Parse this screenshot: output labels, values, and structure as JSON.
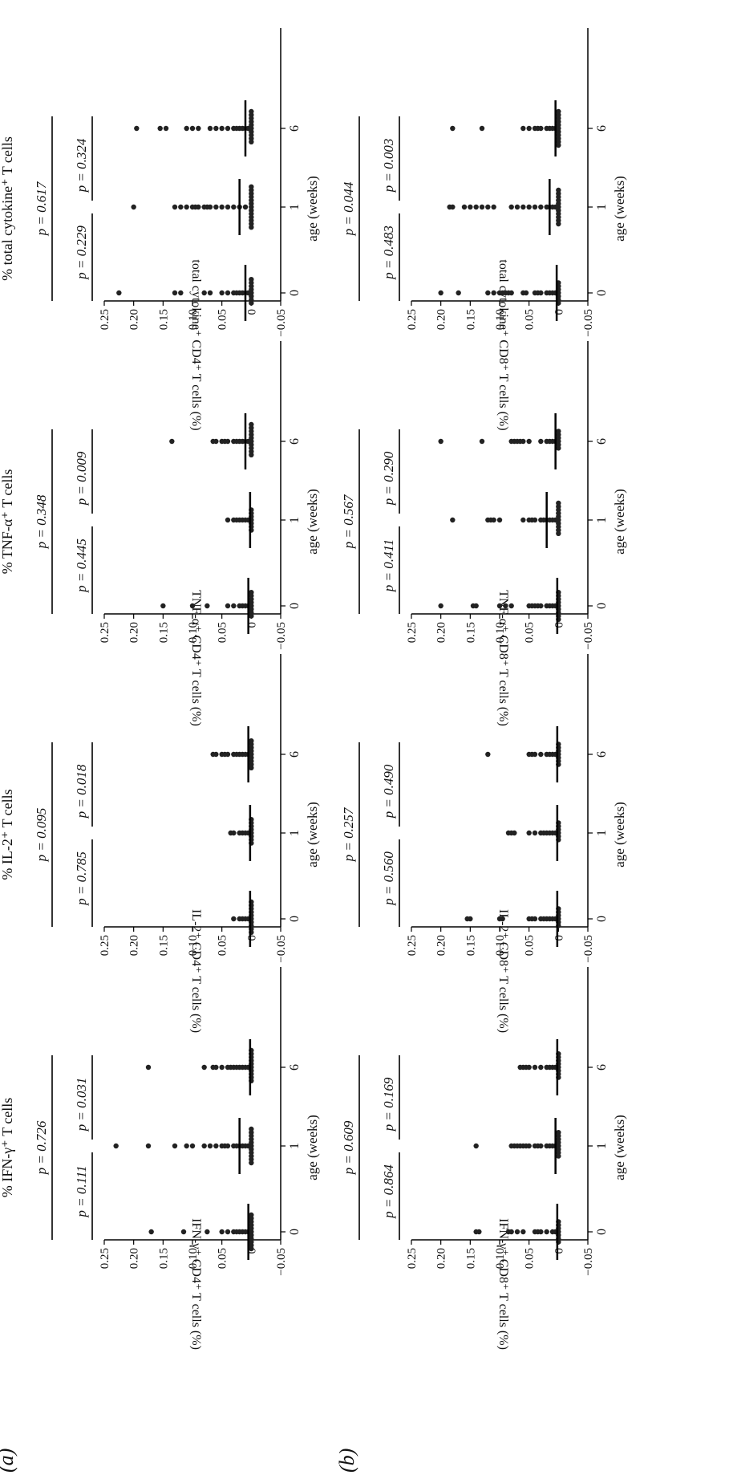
{
  "panel_labels": [
    "(a)",
    "(b)"
  ],
  "chart_data": [
    {
      "type": "scatter",
      "panel": "(a)",
      "title": "% IFN-γ⁺ T cells",
      "ylabel": "IFN-γ⁺ CD4⁺ T cells (%)",
      "xlabel": "age (weeks)",
      "categories": [
        "0",
        "1",
        "6"
      ],
      "ylim": [
        -0.05,
        0.25
      ],
      "yticks": [
        "−0.05",
        "0",
        "0.05",
        "0.10",
        "0.15",
        "0.20",
        "0.25"
      ],
      "p_overall": "p = 0.726",
      "p_left": "p = 0.111",
      "p_right": "p = 0.031",
      "series": [
        {
          "x": "0",
          "values": [
            0.17,
            0.115,
            0.075,
            0.05,
            0.04,
            0.03,
            0.025,
            0.02,
            0.015,
            0.01,
            0.005,
            0,
            0,
            0,
            0,
            0,
            0,
            0,
            0,
            0,
            0,
            0
          ]
        },
        {
          "x": "1",
          "values": [
            0.23,
            0.175,
            0.13,
            0.11,
            0.1,
            0.08,
            0.07,
            0.06,
            0.05,
            0.045,
            0.04,
            0.03,
            0.025,
            0.02,
            0.015,
            0.01,
            0.005,
            0,
            0,
            0,
            0,
            0,
            0,
            0,
            0,
            0,
            0,
            0
          ]
        },
        {
          "x": "6",
          "values": [
            0.175,
            0.08,
            0.065,
            0.06,
            0.05,
            0.04,
            0.035,
            0.03,
            0.025,
            0.02,
            0.015,
            0.01,
            0.005,
            0,
            0,
            0,
            0,
            0,
            0,
            0,
            0,
            0,
            0
          ]
        }
      ],
      "medians": [
        0.005,
        0.02,
        0.002
      ]
    },
    {
      "type": "scatter",
      "panel": "(a)",
      "title": "% IL-2⁺ T cells",
      "ylabel": "IL-2⁺ CD4⁺ T cells (%)",
      "xlabel": "age (weeks)",
      "categories": [
        "0",
        "1",
        "6"
      ],
      "ylim": [
        -0.05,
        0.25
      ],
      "yticks": [
        "−0.05",
        "0",
        "0.05",
        "0.10",
        "0.15",
        "0.20",
        "0.25"
      ],
      "p_overall": "p = 0.095",
      "p_left": "p = 0.785",
      "p_right": "p = 0.018",
      "series": [
        {
          "x": "0",
          "values": [
            0.03,
            0.02,
            0.015,
            0.01,
            0.005,
            0,
            0,
            0,
            0,
            0,
            0,
            0,
            0,
            0,
            0
          ]
        },
        {
          "x": "1",
          "values": [
            0.035,
            0.03,
            0.02,
            0.015,
            0.01,
            0.005,
            0,
            0,
            0,
            0,
            0,
            0,
            0,
            0
          ]
        },
        {
          "x": "6",
          "values": [
            0.065,
            0.06,
            0.05,
            0.045,
            0.04,
            0.03,
            0.025,
            0.02,
            0.015,
            0.01,
            0.005,
            0,
            0,
            0,
            0,
            0,
            0,
            0,
            0,
            0
          ]
        }
      ],
      "medians": [
        0.002,
        0.002,
        0.005
      ]
    },
    {
      "type": "scatter",
      "panel": "(a)",
      "title": "% TNF-α⁺ T cells",
      "ylabel": "TNF-α⁺ CD4⁺ T cells (%)",
      "xlabel": "age (weeks)",
      "categories": [
        "0",
        "1",
        "6"
      ],
      "ylim": [
        -0.05,
        0.25
      ],
      "yticks": [
        "−0.05",
        "0",
        "0.05",
        "0.10",
        "0.15",
        "0.20",
        "0.25"
      ],
      "p_overall": "p = 0.348",
      "p_left": "p = 0.445",
      "p_right": "p = 0.009",
      "series": [
        {
          "x": "0",
          "values": [
            0.15,
            0.1,
            0.075,
            0.04,
            0.03,
            0.02,
            0.015,
            0.01,
            0.005,
            0,
            0,
            0,
            0,
            0,
            0,
            0,
            0
          ]
        },
        {
          "x": "1",
          "values": [
            0.04,
            0.03,
            0.025,
            0.02,
            0.015,
            0.01,
            0.005,
            0,
            0,
            0,
            0,
            0,
            0,
            0
          ]
        },
        {
          "x": "6",
          "values": [
            0.135,
            0.065,
            0.06,
            0.05,
            0.045,
            0.04,
            0.03,
            0.025,
            0.02,
            0.015,
            0.01,
            0.005,
            0,
            0,
            0,
            0,
            0,
            0,
            0,
            0,
            0,
            0
          ]
        }
      ],
      "medians": [
        0.005,
        0.002,
        0.01
      ]
    },
    {
      "type": "scatter",
      "panel": "(a)",
      "title": "% total cytokine⁺ T cells",
      "ylabel": "total cytokine⁺ CD4⁺ T cells (%)",
      "xlabel": "age (weeks)",
      "categories": [
        "0",
        "1",
        "6"
      ],
      "ylim": [
        -0.05,
        0.25
      ],
      "yticks": [
        "−0.05",
        "0",
        "0.05",
        "0.10",
        "0.15",
        "0.20",
        "0.25"
      ],
      "p_overall": "p = 0.617",
      "p_left": "p = 0.229",
      "p_right": "p = 0.324",
      "series": [
        {
          "x": "0",
          "values": [
            0.225,
            0.13,
            0.12,
            0.08,
            0.07,
            0.05,
            0.04,
            0.03,
            0.025,
            0.02,
            0.015,
            0.01,
            0.005,
            0,
            0,
            0,
            0,
            0,
            0,
            0,
            0
          ]
        },
        {
          "x": "1",
          "values": [
            0.2,
            0.13,
            0.12,
            0.11,
            0.1,
            0.095,
            0.09,
            0.08,
            0.075,
            0.07,
            0.06,
            0.05,
            0.04,
            0.03,
            0.02,
            0.01,
            0,
            0,
            0,
            0,
            0,
            0,
            0,
            0,
            0,
            0,
            0,
            0,
            0
          ]
        },
        {
          "x": "6",
          "values": [
            0.195,
            0.155,
            0.145,
            0.11,
            0.1,
            0.09,
            0.07,
            0.06,
            0.05,
            0.04,
            0.03,
            0.025,
            0.02,
            0.015,
            0.01,
            0.005,
            0,
            0,
            0,
            0,
            0,
            0,
            0,
            0,
            0,
            0
          ]
        }
      ],
      "medians": [
        0.01,
        0.02,
        0.01
      ]
    },
    {
      "type": "scatter",
      "panel": "(b)",
      "title": "",
      "ylabel": "IFN-γ⁺ CD8⁺ T cells (%)",
      "xlabel": "age (weeks)",
      "categories": [
        "0",
        "1",
        "6"
      ],
      "ylim": [
        -0.05,
        0.25
      ],
      "yticks": [
        "−0.05",
        "0",
        "0.05",
        "0.10",
        "0.15",
        "0.20",
        "0.25"
      ],
      "p_overall": "p = 0.609",
      "p_left": "p = 0.864",
      "p_right": "p = 0.169",
      "series": [
        {
          "x": "0",
          "values": [
            0.14,
            0.135,
            0.085,
            0.08,
            0.07,
            0.06,
            0.04,
            0.035,
            0.03,
            0.02,
            0.01,
            0.005,
            0,
            0,
            0,
            0,
            0,
            0,
            0
          ]
        },
        {
          "x": "1",
          "values": [
            0.14,
            0.08,
            0.075,
            0.07,
            0.065,
            0.06,
            0.055,
            0.05,
            0.04,
            0.035,
            0.03,
            0.02,
            0.015,
            0.01,
            0.005,
            0,
            0,
            0,
            0,
            0,
            0,
            0,
            0
          ]
        },
        {
          "x": "6",
          "values": [
            0.065,
            0.06,
            0.055,
            0.05,
            0.04,
            0.03,
            0.02,
            0.015,
            0.01,
            0.005,
            0,
            0,
            0,
            0,
            0,
            0,
            0,
            0
          ]
        }
      ],
      "medians": [
        0.002,
        0.005,
        0.002
      ]
    },
    {
      "type": "scatter",
      "panel": "(b)",
      "title": "",
      "ylabel": "IL-2⁺ CD8⁺ T cells (%)",
      "xlabel": "age (weeks)",
      "categories": [
        "0",
        "1",
        "6"
      ],
      "ylim": [
        -0.05,
        0.25
      ],
      "yticks": [
        "−0.05",
        "0",
        "0.05",
        "0.10",
        "0.15",
        "0.20",
        "0.25"
      ],
      "p_overall": "p = 0.257",
      "p_left": "p = 0.560",
      "p_right": "p = 0.490",
      "series": [
        {
          "x": "0",
          "values": [
            0.155,
            0.15,
            0.1,
            0.095,
            0.05,
            0.045,
            0.04,
            0.03,
            0.025,
            0.02,
            0.015,
            0.01,
            0.005,
            0,
            0,
            0,
            0,
            0,
            0
          ]
        },
        {
          "x": "1",
          "values": [
            0.085,
            0.08,
            0.075,
            0.05,
            0.04,
            0.03,
            0.025,
            0.02,
            0.015,
            0.01,
            0.005,
            0,
            0,
            0,
            0,
            0,
            0
          ]
        },
        {
          "x": "6",
          "values": [
            0.12,
            0.05,
            0.045,
            0.04,
            0.03,
            0.02,
            0.015,
            0.01,
            0.005,
            0,
            0,
            0,
            0,
            0,
            0,
            0
          ]
        }
      ],
      "medians": [
        0.002,
        0.002,
        0.002
      ]
    },
    {
      "type": "scatter",
      "panel": "(b)",
      "title": "",
      "ylabel": "TNF-α⁺ CD8⁺ T cells (%)",
      "xlabel": "age (weeks)",
      "categories": [
        "0",
        "1",
        "6"
      ],
      "ylim": [
        -0.05,
        0.25
      ],
      "yticks": [
        "−0.05",
        "0",
        "0.05",
        "0.10",
        "0.15",
        "0.20",
        "0.25"
      ],
      "p_overall": "p = 0.567",
      "p_left": "p = 0.411",
      "p_right": "p = 0.290",
      "series": [
        {
          "x": "0",
          "values": [
            0.2,
            0.145,
            0.14,
            0.1,
            0.09,
            0.08,
            0.05,
            0.045,
            0.04,
            0.035,
            0.03,
            0.02,
            0.015,
            0.01,
            0.005,
            0,
            0,
            0,
            0,
            0,
            0,
            0,
            0,
            0
          ]
        },
        {
          "x": "1",
          "values": [
            0.18,
            0.12,
            0.115,
            0.11,
            0.1,
            0.06,
            0.05,
            0.045,
            0.04,
            0.03,
            0.025,
            0.02,
            0.015,
            0.01,
            0.005,
            0,
            0,
            0,
            0,
            0,
            0,
            0,
            0,
            0,
            0
          ]
        },
        {
          "x": "6",
          "values": [
            0.2,
            0.13,
            0.08,
            0.075,
            0.07,
            0.065,
            0.06,
            0.05,
            0.03,
            0.02,
            0.015,
            0.01,
            0.005,
            0,
            0,
            0,
            0,
            0,
            0
          ]
        }
      ],
      "medians": [
        0.002,
        0.02,
        0.005
      ]
    },
    {
      "type": "scatter",
      "panel": "(b)",
      "title": "",
      "ylabel": "total cytokine⁺ CD8⁺ T cells (%)",
      "xlabel": "age (weeks)",
      "categories": [
        "0",
        "1",
        "6"
      ],
      "ylim": [
        -0.05,
        0.25
      ],
      "yticks": [
        "−0.05",
        "0",
        "0.05",
        "0.10",
        "0.15",
        "0.20",
        "0.25"
      ],
      "p_overall": "p = 0.044",
      "p_left": "p = 0.483",
      "p_right": "p = 0.003",
      "series": [
        {
          "x": "0",
          "values": [
            0.2,
            0.17,
            0.12,
            0.11,
            0.1,
            0.095,
            0.09,
            0.085,
            0.08,
            0.06,
            0.055,
            0.04,
            0.035,
            0.03,
            0.02,
            0.015,
            0.01,
            0.005,
            0,
            0,
            0,
            0,
            0,
            0,
            0
          ]
        },
        {
          "x": "1",
          "values": [
            0.185,
            0.18,
            0.16,
            0.15,
            0.14,
            0.13,
            0.12,
            0.11,
            0.08,
            0.07,
            0.06,
            0.05,
            0.04,
            0.03,
            0.02,
            0.015,
            0.01,
            0.005,
            0,
            0,
            0,
            0,
            0,
            0,
            0,
            0,
            0,
            0,
            0
          ]
        },
        {
          "x": "6",
          "values": [
            0.18,
            0.13,
            0.06,
            0.05,
            0.04,
            0.035,
            0.03,
            0.02,
            0.015,
            0.01,
            0.005,
            0,
            0,
            0,
            0,
            0,
            0,
            0,
            0,
            0,
            0,
            0
          ]
        }
      ],
      "medians": [
        0.003,
        0.015,
        0.005
      ]
    }
  ]
}
